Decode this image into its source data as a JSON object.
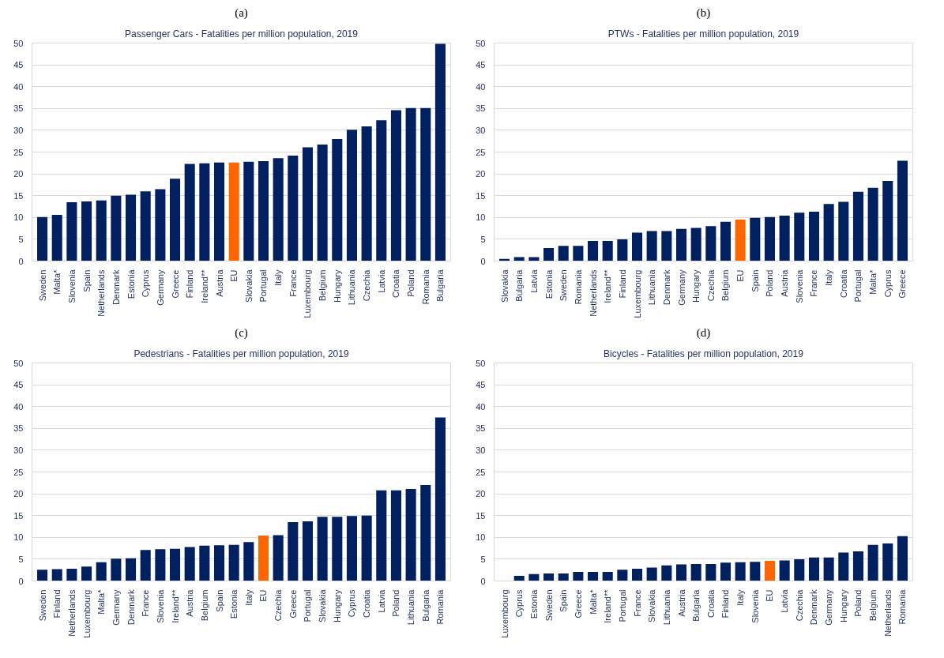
{
  "chart_data": [
    {
      "type": "bar",
      "title": "Passenger Cars - Fatalities per million population, 2019",
      "annotations": [
        "(a)"
      ],
      "categories": [
        "Sweden",
        "Malta*",
        "Slovenia",
        "Spain",
        "Netherlands",
        "Denmark",
        "Estonia",
        "Cyprus",
        "Germany",
        "Greece",
        "Finland",
        "Ireland**",
        "Austria",
        "EU",
        "Slovakia",
        "Portugal",
        "Italy",
        "France",
        "Luxembourg",
        "Belgium",
        "Hungary",
        "Lithuania",
        "Czechia",
        "Latvia",
        "Croatia",
        "Poland",
        "Romania",
        "Bulgaria"
      ],
      "values": [
        10.1,
        10.6,
        13.5,
        13.7,
        13.9,
        15.0,
        15.2,
        16.0,
        16.5,
        18.9,
        22.3,
        22.4,
        22.6,
        22.6,
        22.8,
        22.9,
        23.6,
        24.2,
        26.1,
        26.7,
        28.0,
        30.1,
        30.9,
        32.3,
        34.6,
        35.1,
        35.1,
        49.8
      ],
      "colors": [
        "#002060",
        "#002060",
        "#002060",
        "#002060",
        "#002060",
        "#002060",
        "#002060",
        "#002060",
        "#002060",
        "#002060",
        "#002060",
        "#002060",
        "#002060",
        "#ff6600",
        "#002060",
        "#002060",
        "#002060",
        "#002060",
        "#002060",
        "#002060",
        "#002060",
        "#002060",
        "#002060",
        "#002060",
        "#002060",
        "#002060",
        "#002060",
        "#002060"
      ],
      "ylim": [
        0,
        50
      ],
      "yticks": [
        0,
        5,
        10,
        15,
        20,
        25,
        30,
        35,
        40,
        45,
        50
      ],
      "grid": "y"
    },
    {
      "type": "bar",
      "title": "PTWs - Fatalities per million population, 2019",
      "annotations": [
        "(b)"
      ],
      "categories": [
        "Slovakia",
        "Bulgaria",
        "Latvia",
        "Estonia",
        "Sweden",
        "Romania",
        "Netherlands",
        "Ireland**",
        "Finland",
        "Luxembourg",
        "Lithuania",
        "Denmark",
        "Germany",
        "Hungary",
        "Czechia",
        "Belgium",
        "EU",
        "Spain",
        "Poland",
        "Austria",
        "Slovenia",
        "France",
        "Italy",
        "Croatia",
        "Portugal",
        "Malta*",
        "Cyprus",
        "Greece"
      ],
      "values": [
        0.5,
        0.9,
        0.9,
        3.0,
        3.5,
        3.5,
        4.6,
        4.6,
        5.0,
        6.5,
        6.9,
        6.9,
        7.4,
        7.6,
        8.0,
        9.0,
        9.5,
        9.9,
        10.1,
        10.4,
        11.1,
        11.3,
        13.1,
        13.6,
        15.9,
        16.8,
        18.4,
        23.0
      ],
      "colors": [
        "#002060",
        "#002060",
        "#002060",
        "#002060",
        "#002060",
        "#002060",
        "#002060",
        "#002060",
        "#002060",
        "#002060",
        "#002060",
        "#002060",
        "#002060",
        "#002060",
        "#002060",
        "#002060",
        "#ff6600",
        "#002060",
        "#002060",
        "#002060",
        "#002060",
        "#002060",
        "#002060",
        "#002060",
        "#002060",
        "#002060",
        "#002060",
        "#002060"
      ],
      "ylim": [
        0,
        50
      ],
      "yticks": [
        0,
        5,
        10,
        15,
        20,
        25,
        30,
        35,
        40,
        45,
        50
      ],
      "grid": "y"
    },
    {
      "type": "bar",
      "title": "Pedestrians - Fatalities per million population, 2019",
      "annotations": [
        "(c)"
      ],
      "categories": [
        "Sweden",
        "Finland",
        "Netherlands",
        "Luxembourg",
        "Malta*",
        "Germany",
        "Denmark",
        "France",
        "Slovenia",
        "Ireland**",
        "Austria",
        "Belgium",
        "Spain",
        "Estonia",
        "Italy",
        "EU",
        "Czechia",
        "Greece",
        "Portugal",
        "Slovakia",
        "Hungary",
        "Cyprus",
        "Croatia",
        "Latvia",
        "Poland",
        "Lithuania",
        "Bulgaria",
        "Romania"
      ],
      "values": [
        2.6,
        2.7,
        2.8,
        3.3,
        4.3,
        5.1,
        5.2,
        7.1,
        7.3,
        7.4,
        7.8,
        8.1,
        8.2,
        8.3,
        8.9,
        10.4,
        10.5,
        13.5,
        13.7,
        14.7,
        14.7,
        14.9,
        15.0,
        20.8,
        20.8,
        21.1,
        22.0,
        37.5
      ],
      "colors": [
        "#002060",
        "#002060",
        "#002060",
        "#002060",
        "#002060",
        "#002060",
        "#002060",
        "#002060",
        "#002060",
        "#002060",
        "#002060",
        "#002060",
        "#002060",
        "#002060",
        "#002060",
        "#ff6600",
        "#002060",
        "#002060",
        "#002060",
        "#002060",
        "#002060",
        "#002060",
        "#002060",
        "#002060",
        "#002060",
        "#002060",
        "#002060",
        "#002060"
      ],
      "ylim": [
        0,
        50
      ],
      "yticks": [
        0,
        5,
        10,
        15,
        20,
        25,
        30,
        35,
        40,
        45,
        50
      ],
      "grid": "y"
    },
    {
      "type": "bar",
      "title": "Bicycles - Fatalities per million population, 2019",
      "annotations": [
        "(d)"
      ],
      "categories": [
        "Luxembourg",
        "Cyprus",
        "Estonia",
        "Sweden",
        "Spain",
        "Greece",
        "Malta*",
        "Ireland**",
        "Portugal",
        "France",
        "Slovakia",
        "Lithuania",
        "Austria",
        "Bulgaria",
        "Croatia",
        "Finland",
        "Italy",
        "Slovenia",
        "EU",
        "Latvia",
        "Czechia",
        "Denmark",
        "Germany",
        "Hungary",
        "Poland",
        "Belgium",
        "Netherlands",
        "Romania"
      ],
      "values": [
        0,
        1.2,
        1.6,
        1.7,
        1.7,
        2.1,
        2.1,
        2.1,
        2.6,
        2.8,
        3.1,
        3.6,
        3.8,
        3.9,
        3.9,
        4.2,
        4.3,
        4.4,
        4.6,
        4.7,
        5.0,
        5.4,
        5.4,
        6.5,
        6.8,
        8.3,
        8.6,
        10.3
      ],
      "colors": [
        "#002060",
        "#002060",
        "#002060",
        "#002060",
        "#002060",
        "#002060",
        "#002060",
        "#002060",
        "#002060",
        "#002060",
        "#002060",
        "#002060",
        "#002060",
        "#002060",
        "#002060",
        "#002060",
        "#002060",
        "#002060",
        "#ff6600",
        "#002060",
        "#002060",
        "#002060",
        "#002060",
        "#002060",
        "#002060",
        "#002060",
        "#002060",
        "#002060"
      ],
      "ylim": [
        0,
        50
      ],
      "yticks": [
        0,
        5,
        10,
        15,
        20,
        25,
        30,
        35,
        40,
        45,
        50
      ],
      "grid": "y"
    }
  ]
}
